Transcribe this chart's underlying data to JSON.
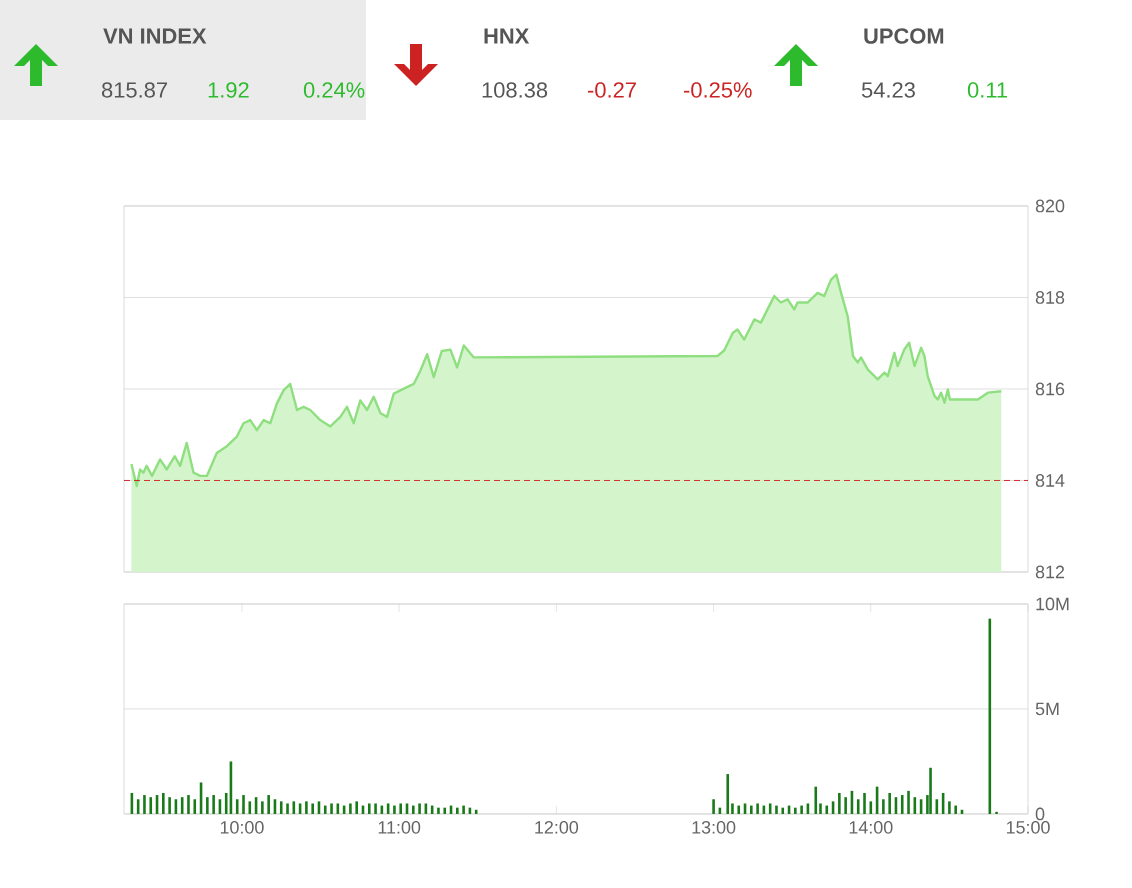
{
  "chart_data": [
    {
      "type": "other",
      "title": "VN INDEX",
      "values": [
        815.87,
        1.92,
        0.24
      ],
      "value_labels": [
        "815.87",
        "1.92",
        "0.24%"
      ],
      "colors": [
        "#555555",
        "#2dbb2d",
        "#2dbb2d"
      ]
    },
    {
      "type": "other",
      "title": "HNX",
      "values": [
        108.38,
        -0.27,
        -0.25
      ],
      "value_labels": [
        "108.38",
        "-0.27",
        "-0.25%"
      ],
      "colors": [
        "#555555",
        "#cc2222",
        "#cc2222"
      ]
    },
    {
      "type": "other",
      "title": "UPCOM",
      "values": [
        54.23,
        0.11
      ],
      "value_labels": [
        "54.23",
        "0.11"
      ],
      "colors": [
        "#555555",
        "#2dbb2d"
      ]
    },
    {
      "type": "area",
      "color": "#8fdf80",
      "x": [
        9.297,
        9.331,
        9.352,
        9.373,
        9.394,
        9.428,
        9.479,
        9.522,
        9.573,
        9.607,
        9.649,
        9.692,
        9.734,
        9.777,
        9.84,
        9.904,
        9.968,
        10.01,
        10.053,
        10.095,
        10.138,
        10.18,
        10.222,
        10.265,
        10.307,
        10.35,
        10.392,
        10.435,
        10.498,
        10.562,
        10.626,
        10.668,
        10.711,
        10.753,
        10.796,
        10.838,
        10.881,
        10.923,
        10.966,
        11.05,
        11.093,
        11.135,
        11.178,
        11.22,
        11.271,
        11.326,
        11.369,
        11.411,
        11.475,
        13.025,
        13.067,
        13.123,
        13.152,
        13.195,
        13.259,
        13.301,
        13.343,
        13.386,
        13.428,
        13.471,
        13.513,
        13.534,
        13.598,
        13.662,
        13.704,
        13.747,
        13.781,
        13.811,
        13.853,
        13.887,
        13.917,
        13.938,
        13.98,
        14.044,
        14.087,
        14.108,
        14.15,
        14.171,
        14.214,
        14.244,
        14.278,
        14.32,
        14.341,
        14.362,
        14.405,
        14.426,
        14.447,
        14.469,
        14.49,
        14.503,
        14.681,
        14.745,
        14.83
      ],
      "values": [
        814.36,
        813.88,
        814.24,
        814.17,
        814.32,
        814.1,
        814.46,
        814.24,
        814.53,
        814.32,
        814.82,
        814.17,
        814.1,
        814.1,
        814.6,
        814.75,
        814.96,
        815.25,
        815.32,
        815.1,
        815.32,
        815.25,
        815.68,
        815.97,
        816.11,
        815.54,
        815.61,
        815.54,
        815.32,
        815.18,
        815.39,
        815.61,
        815.25,
        815.75,
        815.54,
        815.83,
        815.47,
        815.39,
        815.9,
        816.04,
        816.11,
        816.4,
        816.76,
        816.26,
        816.83,
        816.86,
        816.47,
        816.95,
        816.69,
        816.72,
        816.84,
        817.23,
        817.3,
        817.08,
        817.52,
        817.45,
        817.74,
        818.03,
        817.89,
        817.96,
        817.74,
        817.89,
        817.89,
        818.1,
        818.03,
        818.39,
        818.5,
        818.1,
        817.59,
        816.72,
        816.58,
        816.69,
        816.43,
        816.21,
        816.36,
        816.28,
        816.79,
        816.5,
        816.87,
        817.01,
        816.5,
        816.9,
        816.72,
        816.28,
        815.85,
        815.77,
        815.92,
        815.7,
        815.99,
        815.77,
        815.77,
        815.92,
        815.95
      ],
      "xlim": [
        9.25,
        15
      ],
      "ylim": [
        812,
        820
      ],
      "yticks": [
        812,
        814,
        816,
        818,
        820
      ],
      "grid": "y",
      "tick_labels": "y",
      "ref_lines": [
        {
          "axis": "y",
          "value": 814,
          "color": "#cc0000",
          "line_style": "dashed"
        }
      ]
    },
    {
      "type": "bar",
      "color": "#1a7a1a",
      "x": [
        9.3,
        9.34,
        9.38,
        9.42,
        9.46,
        9.5,
        9.54,
        9.58,
        9.62,
        9.66,
        9.7,
        9.74,
        9.78,
        9.82,
        9.86,
        9.9,
        9.93,
        9.97,
        10.01,
        10.05,
        10.09,
        10.13,
        10.17,
        10.21,
        10.25,
        10.29,
        10.33,
        10.37,
        10.41,
        10.45,
        10.49,
        10.53,
        10.57,
        10.61,
        10.65,
        10.69,
        10.73,
        10.77,
        10.81,
        10.85,
        10.89,
        10.93,
        10.97,
        11.01,
        11.05,
        11.09,
        11.13,
        11.17,
        11.21,
        11.25,
        11.29,
        11.33,
        11.37,
        11.41,
        11.45,
        11.49,
        13.0,
        13.04,
        13.09,
        13.12,
        13.16,
        13.2,
        13.24,
        13.28,
        13.32,
        13.36,
        13.4,
        13.44,
        13.48,
        13.52,
        13.56,
        13.6,
        13.65,
        13.68,
        13.72,
        13.76,
        13.8,
        13.84,
        13.88,
        13.92,
        13.96,
        14.0,
        14.04,
        14.08,
        14.12,
        14.16,
        14.2,
        14.24,
        14.28,
        14.32,
        14.36,
        14.38,
        14.42,
        14.46,
        14.5,
        14.54,
        14.58,
        14.757,
        14.8
      ],
      "values": [
        1.0,
        0.7,
        0.9,
        0.8,
        0.9,
        1.0,
        0.8,
        0.7,
        0.8,
        0.9,
        0.7,
        1.5,
        0.8,
        0.9,
        0.7,
        1.0,
        2.5,
        0.7,
        0.9,
        0.6,
        0.8,
        0.6,
        0.9,
        0.7,
        0.6,
        0.5,
        0.6,
        0.5,
        0.6,
        0.5,
        0.6,
        0.4,
        0.5,
        0.5,
        0.4,
        0.5,
        0.6,
        0.4,
        0.5,
        0.5,
        0.4,
        0.5,
        0.4,
        0.5,
        0.5,
        0.4,
        0.5,
        0.5,
        0.4,
        0.3,
        0.3,
        0.4,
        0.3,
        0.4,
        0.3,
        0.2,
        0.7,
        0.3,
        1.9,
        0.5,
        0.4,
        0.5,
        0.4,
        0.5,
        0.4,
        0.5,
        0.4,
        0.3,
        0.4,
        0.3,
        0.4,
        0.5,
        1.3,
        0.5,
        0.4,
        0.6,
        1.0,
        0.8,
        1.1,
        0.7,
        1.0,
        0.6,
        1.3,
        0.7,
        1.0,
        0.8,
        0.9,
        1.1,
        0.8,
        0.7,
        0.9,
        2.2,
        0.7,
        1.0,
        0.6,
        0.4,
        0.2,
        9.3,
        0.1
      ],
      "xlim": [
        9.25,
        15
      ],
      "xticks": [
        {
          "value": 10,
          "label": "10:00"
        },
        {
          "value": 11,
          "label": "11:00"
        },
        {
          "value": 12,
          "label": "12:00"
        },
        {
          "value": 13,
          "label": "13:00"
        },
        {
          "value": 14,
          "label": "14:00"
        },
        {
          "value": 15,
          "label": "15:00"
        }
      ],
      "ylim": [
        0,
        10
      ],
      "yticks": [
        0,
        {
          "value": 5,
          "label": "5M"
        },
        {
          "value": 10,
          "label": "10M"
        }
      ],
      "grid": "y"
    }
  ]
}
